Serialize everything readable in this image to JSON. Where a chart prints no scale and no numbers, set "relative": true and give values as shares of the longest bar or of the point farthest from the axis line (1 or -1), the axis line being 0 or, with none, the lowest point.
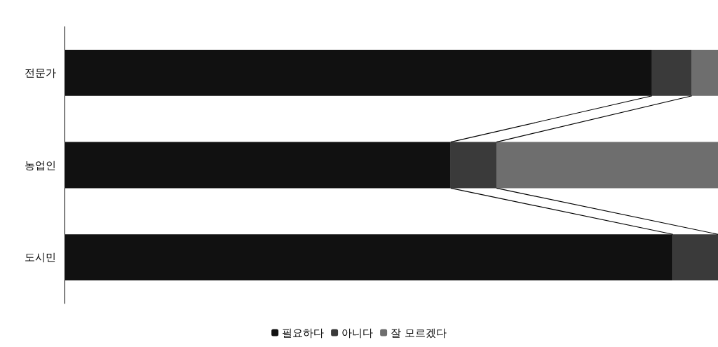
{
  "chart_data": {
    "type": "bar",
    "orientation": "horizontal",
    "stacked": true,
    "relative": true,
    "categories": [
      "전문가",
      "농업인",
      "도시민"
    ],
    "series": [
      {
        "name": "필요하다",
        "color": "#111111",
        "values": [
          0.899,
          0.591,
          0.931
        ]
      },
      {
        "name": "아니다",
        "color": "#3a3a3a",
        "values": [
          0.061,
          0.07,
          0.069
        ]
      },
      {
        "name": "잘 모르겠다",
        "color": "#6e6e6e",
        "values": [
          0.04,
          0.339,
          0
        ]
      }
    ],
    "legend": "bottom",
    "grid": false
  }
}
